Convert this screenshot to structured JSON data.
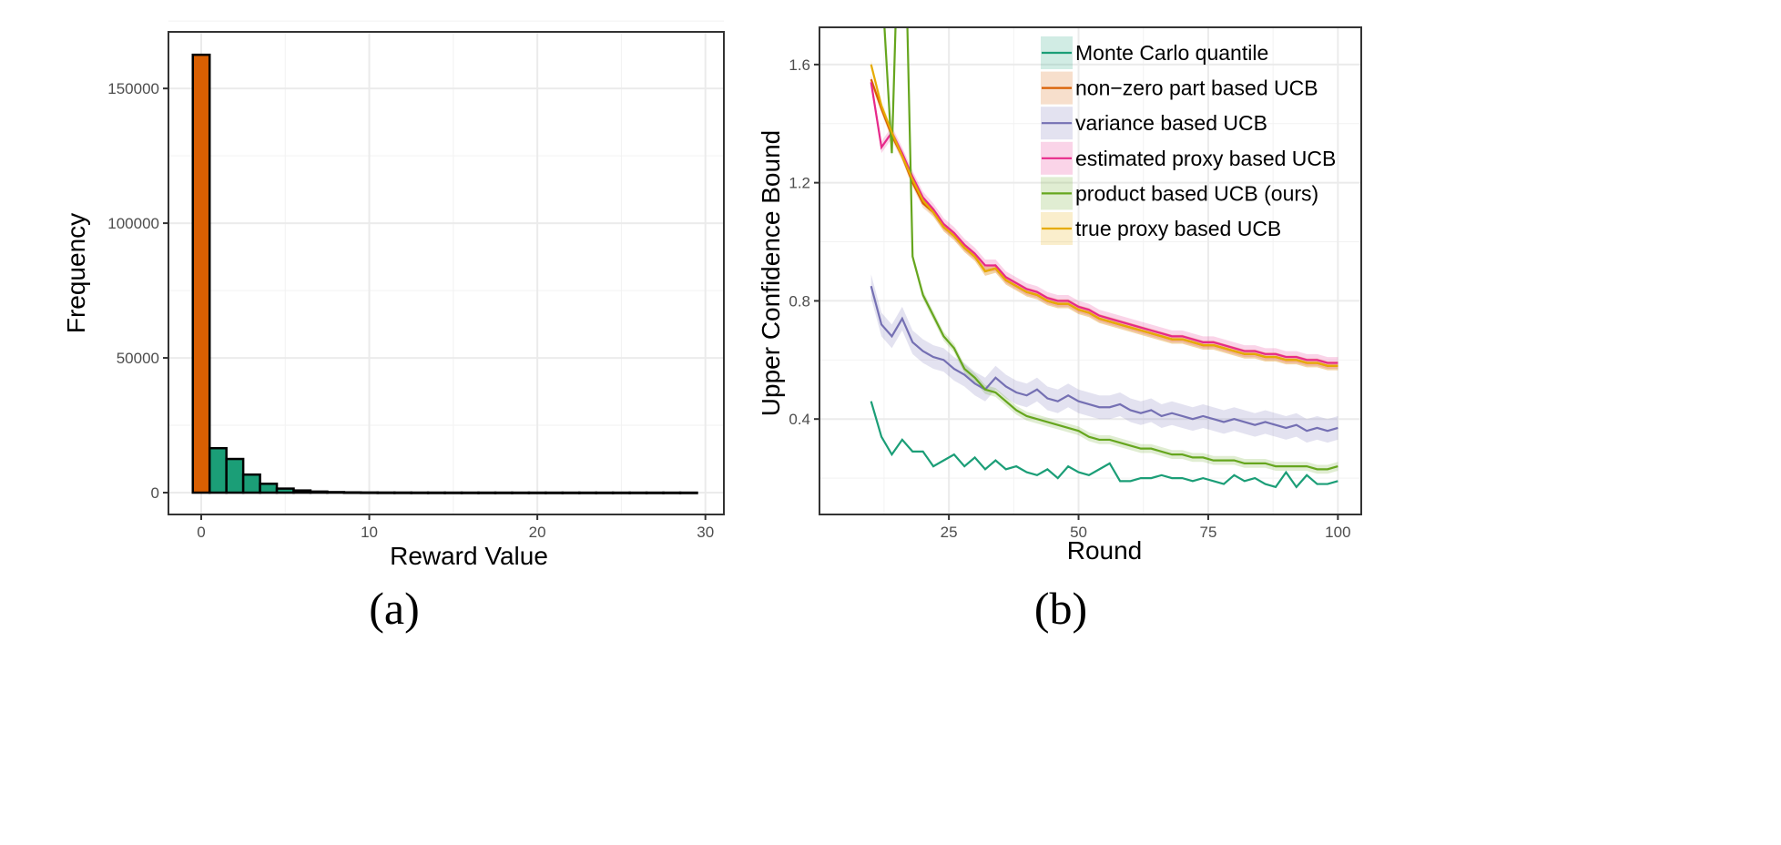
{
  "chart_data": [
    {
      "type": "bar",
      "panel_label": "(a)",
      "xlabel": "Reward Value",
      "ylabel": "Frequency",
      "xlim": [
        -1.95,
        31.1
      ],
      "ylim": [
        -8100,
        171000
      ],
      "xticks": [
        0,
        10,
        20,
        30
      ],
      "yticks": [
        0,
        50000,
        100000,
        150000
      ],
      "grid": true,
      "bin_width": 1,
      "bin_centers": [
        0,
        1,
        2,
        3,
        4,
        5,
        6,
        7,
        8,
        9,
        10,
        11,
        12,
        13,
        14,
        15,
        16,
        17,
        18,
        19,
        20,
        21,
        22,
        23,
        24,
        25,
        26,
        27,
        28,
        29
      ],
      "values": [
        162500,
        16500,
        12500,
        6700,
        3300,
        1500,
        800,
        400,
        200,
        100,
        60,
        40,
        30,
        20,
        15,
        10,
        8,
        6,
        5,
        4,
        3,
        2,
        2,
        1,
        1,
        1,
        1,
        1,
        1,
        1
      ],
      "highlight_color": "#d95f02",
      "bar_color": "#1b9e77"
    },
    {
      "type": "line",
      "panel_label": "(b)",
      "xlabel": "Round",
      "ylabel": "Upper Confidence Bound",
      "xlim": [
        0.05,
        104.5
      ],
      "ylim": [
        0.077,
        1.726
      ],
      "xticks": [
        25,
        50,
        75,
        100
      ],
      "yticks": [
        0.4,
        0.8,
        1.2,
        1.6
      ],
      "grid": true,
      "legend_position": "top-right",
      "x": [
        10,
        12,
        14,
        16,
        18,
        20,
        22,
        24,
        26,
        28,
        30,
        32,
        34,
        36,
        38,
        40,
        42,
        44,
        46,
        48,
        50,
        52,
        54,
        56,
        58,
        60,
        62,
        64,
        66,
        68,
        70,
        72,
        74,
        76,
        78,
        80,
        82,
        84,
        86,
        88,
        90,
        92,
        94,
        96,
        98,
        100
      ],
      "series": [
        {
          "name": "Monte Carlo quantile",
          "color": "#1b9e77",
          "band": 0.0,
          "values": [
            0.46,
            0.34,
            0.28,
            0.33,
            0.29,
            0.29,
            0.24,
            0.26,
            0.28,
            0.24,
            0.27,
            0.23,
            0.26,
            0.23,
            0.24,
            0.22,
            0.21,
            0.23,
            0.2,
            0.24,
            0.22,
            0.21,
            0.23,
            0.25,
            0.19,
            0.19,
            0.2,
            0.2,
            0.21,
            0.2,
            0.2,
            0.19,
            0.2,
            0.19,
            0.18,
            0.21,
            0.19,
            0.2,
            0.18,
            0.17,
            0.22,
            0.17,
            0.21,
            0.18,
            0.18,
            0.19
          ]
        },
        {
          "name": "non−zero part based UCB",
          "color": "#d95f02",
          "band": 0.015,
          "values": [
            1.55,
            1.45,
            1.36,
            1.29,
            1.2,
            1.13,
            1.1,
            1.05,
            1.02,
            0.98,
            0.95,
            0.9,
            0.91,
            0.87,
            0.85,
            0.83,
            0.82,
            0.8,
            0.79,
            0.79,
            0.77,
            0.76,
            0.74,
            0.73,
            0.72,
            0.71,
            0.7,
            0.69,
            0.68,
            0.67,
            0.67,
            0.66,
            0.65,
            0.65,
            0.64,
            0.63,
            0.62,
            0.62,
            0.61,
            0.61,
            0.6,
            0.6,
            0.59,
            0.59,
            0.58,
            0.58
          ]
        },
        {
          "name": "variance based UCB",
          "color": "#7570b3",
          "band": 0.04,
          "values": [
            0.85,
            0.72,
            0.68,
            0.74,
            0.66,
            0.63,
            0.61,
            0.6,
            0.57,
            0.55,
            0.52,
            0.5,
            0.54,
            0.51,
            0.49,
            0.48,
            0.5,
            0.47,
            0.46,
            0.48,
            0.46,
            0.45,
            0.44,
            0.44,
            0.45,
            0.43,
            0.42,
            0.43,
            0.41,
            0.42,
            0.41,
            0.4,
            0.41,
            0.4,
            0.39,
            0.4,
            0.39,
            0.38,
            0.39,
            0.38,
            0.37,
            0.38,
            0.36,
            0.37,
            0.36,
            0.37
          ]
        },
        {
          "name": "estimated proxy based UCB",
          "color": "#e7298a",
          "band": 0.02,
          "values": [
            1.54,
            1.32,
            1.37,
            1.3,
            1.22,
            1.15,
            1.11,
            1.06,
            1.03,
            0.99,
            0.96,
            0.92,
            0.92,
            0.88,
            0.86,
            0.84,
            0.83,
            0.81,
            0.8,
            0.8,
            0.78,
            0.77,
            0.75,
            0.74,
            0.73,
            0.72,
            0.71,
            0.7,
            0.69,
            0.68,
            0.68,
            0.67,
            0.66,
            0.66,
            0.65,
            0.64,
            0.63,
            0.63,
            0.62,
            0.62,
            0.61,
            0.61,
            0.6,
            0.6,
            0.59,
            0.59
          ]
        },
        {
          "name": "product based UCB (ours)",
          "color": "#66a61e",
          "band": 0.015,
          "values": [
            3.0,
            1.9,
            1.3,
            2.5,
            0.95,
            0.82,
            0.75,
            0.68,
            0.64,
            0.57,
            0.54,
            0.5,
            0.49,
            0.46,
            0.43,
            0.41,
            0.4,
            0.39,
            0.38,
            0.37,
            0.36,
            0.34,
            0.33,
            0.33,
            0.32,
            0.31,
            0.3,
            0.3,
            0.29,
            0.28,
            0.28,
            0.27,
            0.27,
            0.26,
            0.26,
            0.26,
            0.25,
            0.25,
            0.25,
            0.24,
            0.24,
            0.24,
            0.24,
            0.23,
            0.23,
            0.24
          ]
        },
        {
          "name": "true proxy based UCB",
          "color": "#e6ab02",
          "band": 0.015,
          "values": [
            1.6,
            1.46,
            1.37,
            1.29,
            1.21,
            1.14,
            1.1,
            1.05,
            1.02,
            0.98,
            0.95,
            0.9,
            0.91,
            0.87,
            0.85,
            0.83,
            0.82,
            0.8,
            0.79,
            0.79,
            0.77,
            0.76,
            0.74,
            0.73,
            0.72,
            0.71,
            0.7,
            0.69,
            0.68,
            0.67,
            0.67,
            0.66,
            0.65,
            0.65,
            0.64,
            0.63,
            0.62,
            0.62,
            0.61,
            0.61,
            0.6,
            0.6,
            0.59,
            0.59,
            0.58,
            0.58
          ]
        }
      ]
    }
  ]
}
